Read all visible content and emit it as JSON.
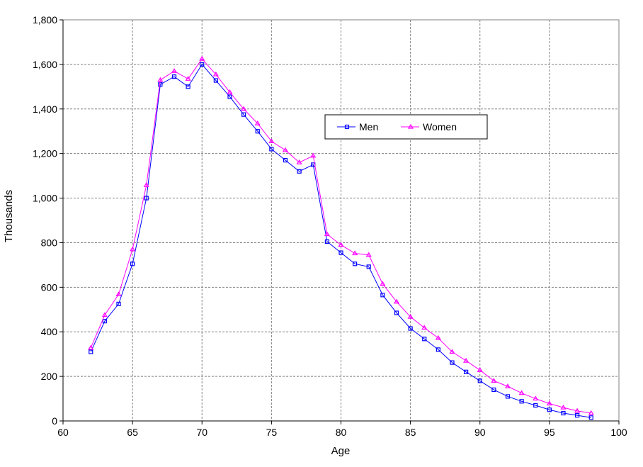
{
  "chart_data": {
    "type": "line",
    "title": "",
    "xlabel": "Age",
    "ylabel": "Thousands",
    "xlim": [
      60,
      100
    ],
    "ylim": [
      0,
      1800
    ],
    "xticks": [
      60,
      65,
      70,
      75,
      80,
      85,
      90,
      95,
      100
    ],
    "yticks": [
      0,
      200,
      400,
      600,
      800,
      1000,
      1200,
      1400,
      1600,
      1800
    ],
    "xtick_labels": [
      "60",
      "65",
      "70",
      "75",
      "80",
      "85",
      "90",
      "95",
      "100"
    ],
    "ytick_labels": [
      "0",
      "200",
      "400",
      "600",
      "800",
      "1,000",
      "1,200",
      "1,400",
      "1,600",
      "1,800"
    ],
    "grid": true,
    "legend_placement": "top-center-right",
    "x": [
      62,
      63,
      64,
      65,
      66,
      67,
      68,
      69,
      70,
      71,
      72,
      73,
      74,
      75,
      76,
      77,
      78,
      79,
      80,
      81,
      82,
      83,
      84,
      85,
      86,
      87,
      88,
      89,
      90,
      91,
      92,
      93,
      94,
      95,
      96,
      97,
      98
    ],
    "series": [
      {
        "name": "Men",
        "color": "#0000ff",
        "marker": "square",
        "values": [
          310,
          448,
          525,
          705,
          1000,
          1510,
          1545,
          1500,
          1600,
          1528,
          1455,
          1375,
          1300,
          1220,
          1170,
          1120,
          1150,
          805,
          755,
          705,
          692,
          565,
          485,
          415,
          368,
          320,
          262,
          220,
          180,
          140,
          110,
          88,
          70,
          50,
          35,
          25,
          15
        ]
      },
      {
        "name": "Women",
        "color": "#ff00ff",
        "marker": "triangle",
        "values": [
          328,
          475,
          568,
          770,
          1058,
          1530,
          1570,
          1535,
          1625,
          1555,
          1475,
          1400,
          1335,
          1255,
          1215,
          1160,
          1190,
          838,
          790,
          752,
          745,
          615,
          535,
          467,
          418,
          372,
          310,
          270,
          228,
          180,
          155,
          125,
          100,
          78,
          60,
          45,
          35
        ]
      }
    ]
  }
}
